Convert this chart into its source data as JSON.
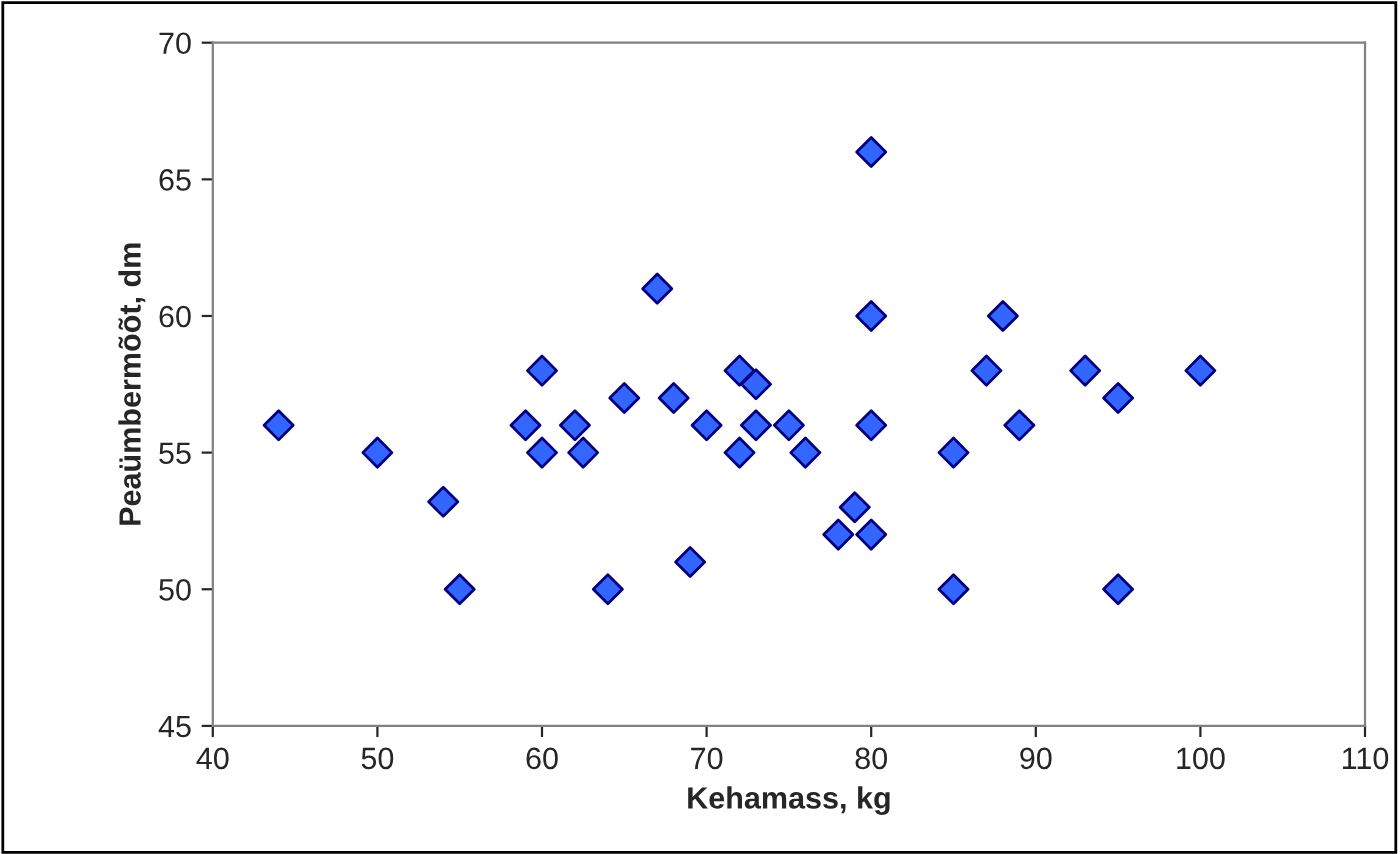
{
  "chart_data": {
    "type": "scatter",
    "xlabel": "Kehamass, kg",
    "ylabel": "Peaümbermõõt, dm",
    "marker": "diamond",
    "grid": false,
    "legend": false,
    "xlim": [
      40,
      110
    ],
    "xticks": [
      40,
      50,
      60,
      70,
      80,
      90,
      100,
      110
    ],
    "ylim": [
      45,
      70
    ],
    "yticks": [
      45,
      50,
      55,
      60,
      65,
      70
    ],
    "series": [
      {
        "color": "#3366ff",
        "x": [
          44,
          50,
          54,
          55,
          59,
          60,
          60,
          62,
          62.5,
          64,
          65,
          67,
          68,
          69,
          70,
          72,
          72,
          73,
          73,
          75,
          76,
          78,
          79,
          80,
          80,
          80,
          80,
          85,
          85,
          87,
          88,
          89,
          93,
          95,
          95,
          100
        ],
        "values": [
          56,
          55,
          53.2,
          50,
          56,
          58,
          55,
          56,
          55,
          50,
          57,
          61,
          57,
          51,
          56,
          58,
          55,
          57.5,
          56,
          56,
          55,
          52,
          53,
          66,
          60,
          56,
          52,
          55,
          50,
          58,
          60,
          56,
          58,
          57,
          50,
          58
        ]
      }
    ]
  }
}
